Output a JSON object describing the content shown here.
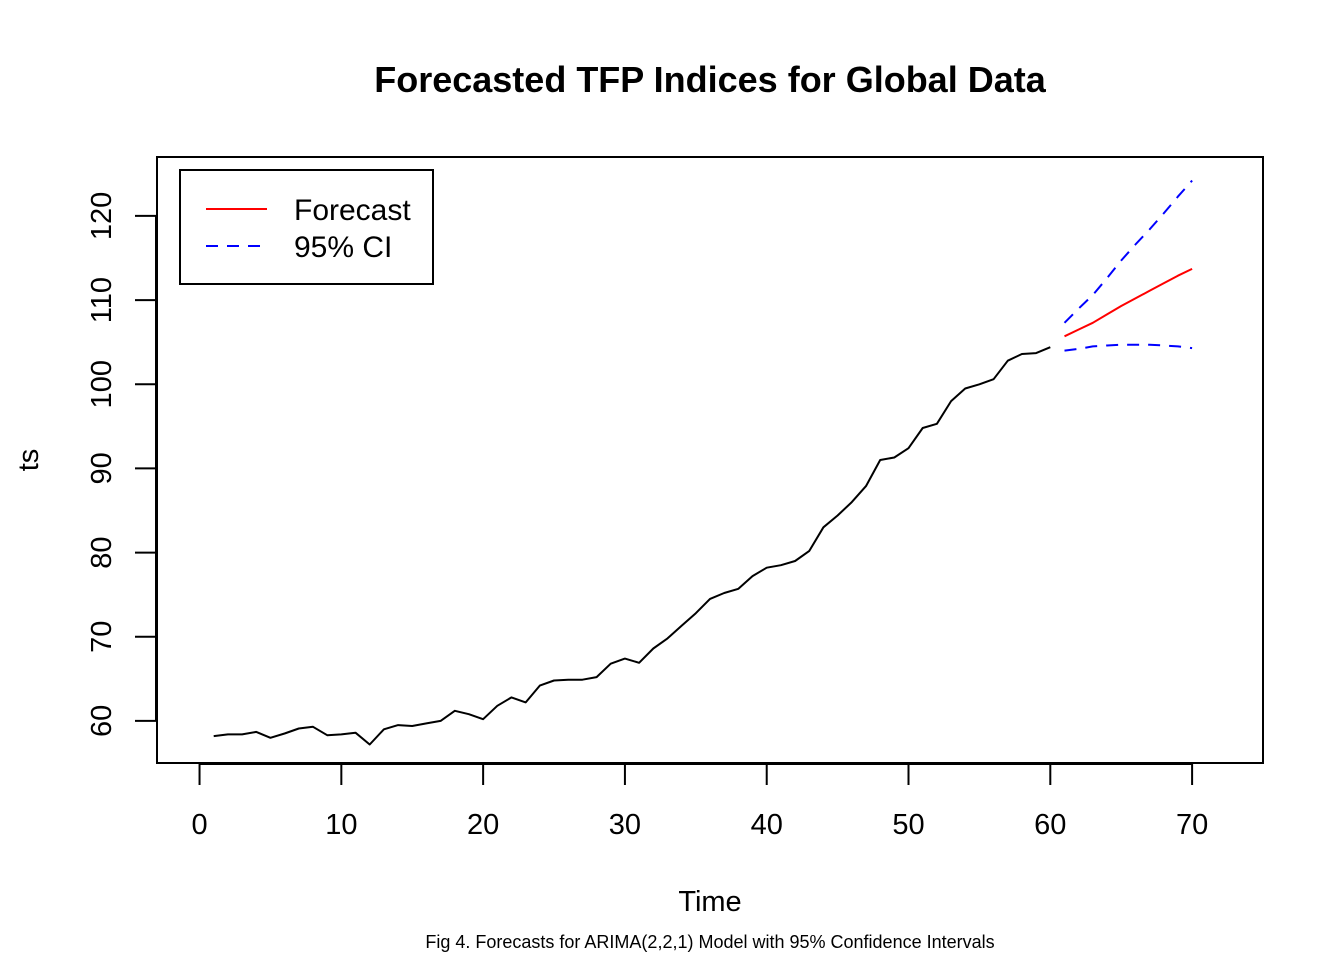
{
  "chart_data": {
    "type": "line",
    "title": "Forecasted TFP Indices for Global Data",
    "xlabel": "Time",
    "ylabel": "ts",
    "caption": "Fig 4. Forecasts for ARIMA(2,2,1) Model with 95% Confidence Intervals",
    "xlim": [
      -3,
      75
    ],
    "ylim": [
      55,
      127
    ],
    "x_ticks": [
      0,
      10,
      20,
      30,
      40,
      50,
      60,
      70
    ],
    "y_ticks": [
      60,
      70,
      80,
      90,
      100,
      110,
      120
    ],
    "legend": {
      "position": "top-left",
      "entries": [
        {
          "label": "Forecast",
          "color": "#ff0000",
          "style": "solid"
        },
        {
          "label": "95% CI",
          "color": "#0000ff",
          "style": "dashed"
        }
      ]
    },
    "series": [
      {
        "color": "#000000",
        "style": "solid",
        "x": [
          1,
          2,
          3,
          4,
          5,
          6,
          7,
          8,
          9,
          10,
          11,
          12,
          13,
          14,
          15,
          16,
          17,
          18,
          19,
          20,
          21,
          22,
          23,
          24,
          25,
          26,
          27,
          28,
          29,
          30,
          31,
          32,
          33,
          34,
          35,
          36,
          37,
          38,
          39,
          40,
          41,
          42,
          43,
          44,
          45,
          46,
          47,
          48,
          49,
          50,
          51,
          52,
          53,
          54,
          55,
          56,
          57,
          58,
          59,
          60
        ],
        "values": [
          58.2,
          58.4,
          58.4,
          58.7,
          58.0,
          58.5,
          59.1,
          59.3,
          58.3,
          58.4,
          58.6,
          57.2,
          59.0,
          59.5,
          59.4,
          59.7,
          60.0,
          61.2,
          60.8,
          60.2,
          61.8,
          62.8,
          62.2,
          64.2,
          64.8,
          64.9,
          64.9,
          65.2,
          66.8,
          67.4,
          66.9,
          68.6,
          69.8,
          71.3,
          72.8,
          74.5,
          75.2,
          75.7,
          77.2,
          78.2,
          78.5,
          79.0,
          80.2,
          83.0,
          84.4,
          86.0,
          87.9,
          91.0,
          91.3,
          92.4,
          94.8,
          95.3,
          98.0,
          99.5,
          100.0,
          100.6,
          102.8,
          103.6,
          103.7,
          104.4
        ]
      },
      {
        "name": "Forecast",
        "color": "#ff0000",
        "style": "solid",
        "x": [
          61,
          62,
          63,
          64,
          65,
          66,
          67,
          68,
          69,
          70
        ],
        "values": [
          105.7,
          106.5,
          107.3,
          108.3,
          109.3,
          110.2,
          111.1,
          112.0,
          112.9,
          113.7
        ]
      },
      {
        "name": "95% CI",
        "color": "#0000ff",
        "style": "dashed",
        "x": [
          61,
          62,
          63,
          64,
          65,
          66,
          67,
          68,
          69,
          70
        ],
        "values": [
          107.3,
          109.0,
          110.6,
          112.6,
          114.7,
          116.6,
          118.4,
          120.3,
          122.3,
          124.2
        ]
      },
      {
        "name": "95% CI",
        "color": "#0000ff",
        "style": "dashed",
        "x": [
          61,
          62,
          63,
          64,
          65,
          66,
          67,
          68,
          69,
          70
        ],
        "values": [
          104.0,
          104.2,
          104.5,
          104.6,
          104.7,
          104.7,
          104.7,
          104.6,
          104.5,
          104.3
        ]
      }
    ]
  }
}
